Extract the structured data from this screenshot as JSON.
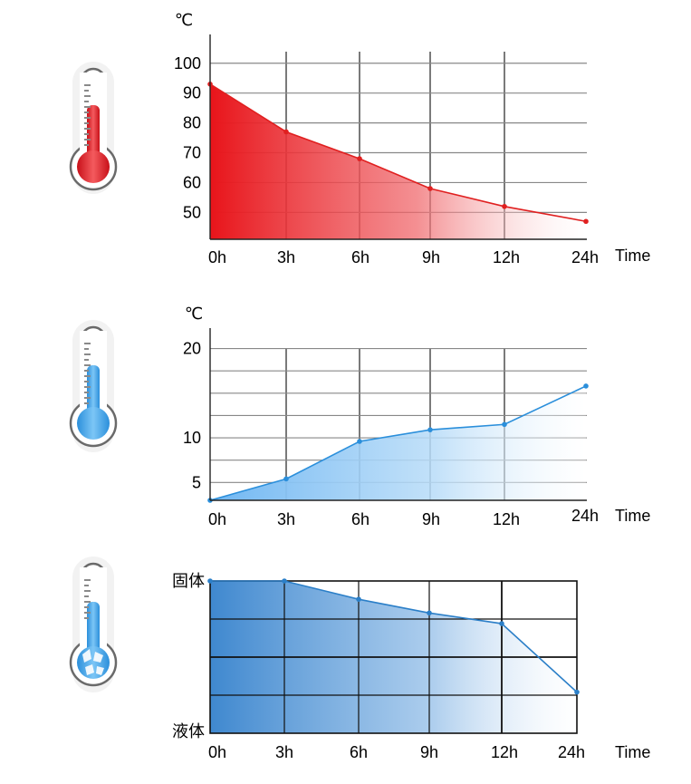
{
  "chart_data": [
    {
      "type": "area",
      "unit": "℃",
      "x_end_label": "Time",
      "categories": [
        "0h",
        "3h",
        "6h",
        "9h",
        "12h",
        "24h"
      ],
      "y_ticks": [
        "50",
        "60",
        "70",
        "80",
        "90",
        "100"
      ],
      "ylim": [
        41,
        106
      ],
      "values": [
        93,
        77,
        68,
        58,
        52,
        47
      ],
      "grid": true,
      "color": "#e02020",
      "icon": "thermometer-hot-icon"
    },
    {
      "type": "area",
      "unit": "℃",
      "x_end_label": "Time",
      "categories": [
        "0h",
        "3h",
        "6h",
        "9h",
        "12h",
        "24h"
      ],
      "y_ticks": [
        "5",
        "10",
        "20"
      ],
      "ylim": [
        3,
        23
      ],
      "values": [
        3,
        5.4,
        9.6,
        10.9,
        11.5,
        15.8
      ],
      "grid": true,
      "color": "#2b8fdb",
      "icon": "thermometer-cold-icon"
    },
    {
      "type": "area",
      "x_end_label": "Time",
      "categories": [
        "0h",
        "3h",
        "6h",
        "9h",
        "12h",
        "24h"
      ],
      "y_ticks": [
        "固体",
        "液体"
      ],
      "values": [
        1.0,
        1.0,
        0.88,
        0.79,
        0.72,
        0.27
      ],
      "grid": true,
      "color": "#2b7fc8",
      "icon": "thermometer-frozen-icon"
    }
  ]
}
